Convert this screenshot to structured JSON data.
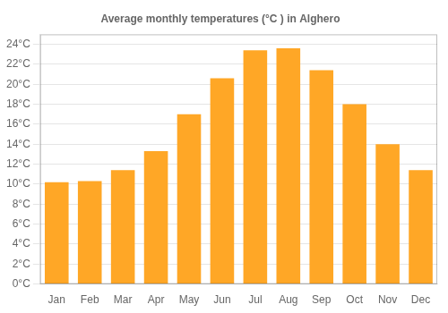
{
  "chart_data": {
    "type": "bar",
    "title": "Average monthly temperatures (°C ) in Alghero",
    "categories": [
      "Jan",
      "Feb",
      "Mar",
      "Apr",
      "May",
      "Jun",
      "Jul",
      "Aug",
      "Sep",
      "Oct",
      "Nov",
      "Dec"
    ],
    "values": [
      10.2,
      10.3,
      11.4,
      13.3,
      17.0,
      20.6,
      23.4,
      23.6,
      21.4,
      18.0,
      14.0,
      11.4
    ],
    "color": "#FFA726",
    "ylim": [
      0,
      25
    ],
    "yticks": [
      {
        "value": 0,
        "label": "0°C"
      },
      {
        "value": 2,
        "label": "2°C"
      },
      {
        "value": 4,
        "label": "4°C"
      },
      {
        "value": 6,
        "label": "6°C"
      },
      {
        "value": 8,
        "label": "8°C"
      },
      {
        "value": 10,
        "label": "10°C"
      },
      {
        "value": 12,
        "label": "12°C"
      },
      {
        "value": 14,
        "label": "14°C"
      },
      {
        "value": 16,
        "label": "16°C"
      },
      {
        "value": 18,
        "label": "18°C"
      },
      {
        "value": 20,
        "label": "20°C"
      },
      {
        "value": 22,
        "label": "22°C"
      },
      {
        "value": 24,
        "label": "24°C"
      }
    ],
    "grid": true
  }
}
